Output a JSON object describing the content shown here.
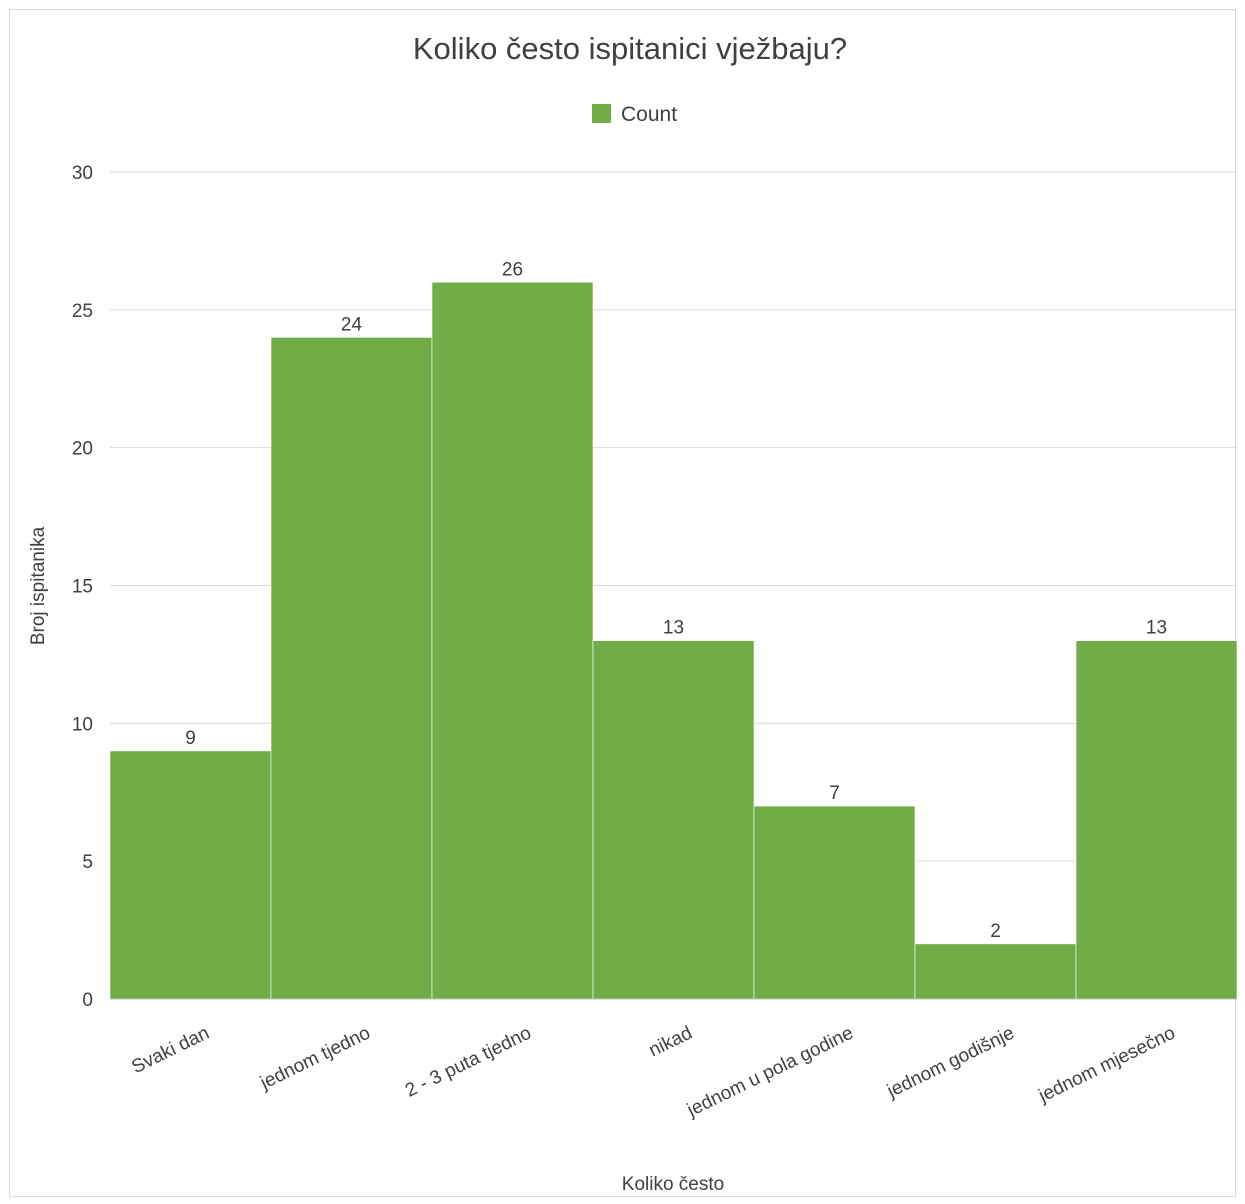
{
  "chart_data": {
    "type": "bar",
    "title": "Koliko često ispitanici vježbaju?",
    "xlabel": "Koliko često",
    "ylabel": "Broj ispitanika",
    "ylim": [
      0,
      30
    ],
    "yticks": [
      0,
      5,
      10,
      15,
      20,
      25,
      30
    ],
    "grid": true,
    "legend_position": "top",
    "categories": [
      "Svaki dan",
      "jednom tjedno",
      "2 - 3 puta tjedno",
      "nikad",
      "jednom u pola godine",
      "jednom godišnje",
      "jednom mjesečno"
    ],
    "series": [
      {
        "name": "Count",
        "color": "#70ad47",
        "values": [
          9,
          24,
          26,
          13,
          7,
          2,
          13
        ]
      }
    ]
  }
}
